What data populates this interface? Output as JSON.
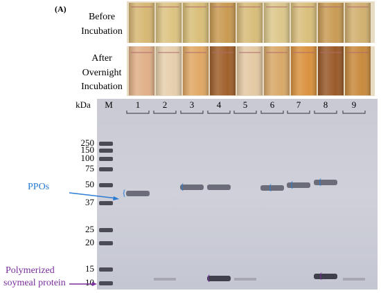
{
  "panel_label": "(A)",
  "tube_rows": [
    {
      "label_lines": [
        "Before",
        "Incubation"
      ]
    },
    {
      "label_lines": [
        "After",
        "Overnight",
        "Incubation"
      ]
    }
  ],
  "gel": {
    "unit": "kDa",
    "lanes": [
      "M",
      "1",
      "2",
      "3",
      "4",
      "5",
      "6",
      "7",
      "8",
      "9"
    ],
    "markers": [
      250,
      150,
      100,
      75,
      50,
      37,
      25,
      20,
      15,
      10
    ]
  },
  "annotations": {
    "ppos": "PPOs",
    "polymerized_lines": [
      "Polymerized",
      "soymeal protein"
    ]
  }
}
